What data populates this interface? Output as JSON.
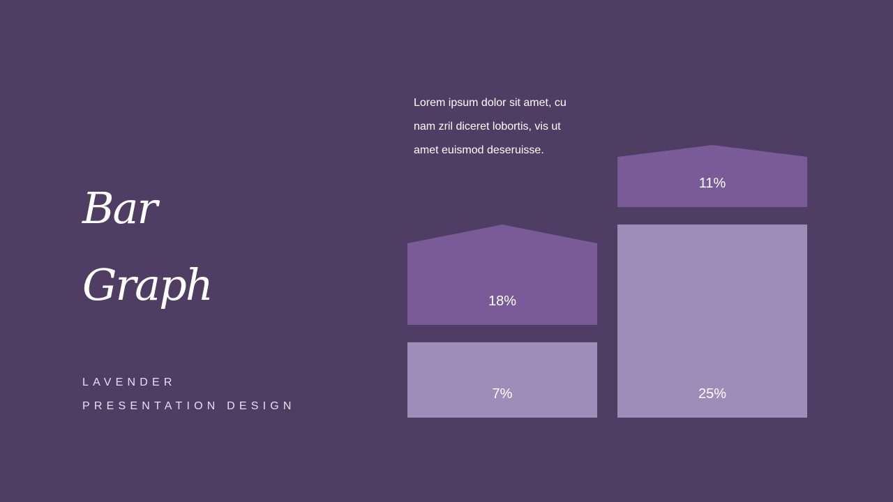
{
  "slide": {
    "title_line1": "Bar",
    "title_line2": "Graph",
    "subtitle_line1": "LAVENDER",
    "subtitle_line2": "PRESENTATION DESIGN",
    "description": "Lorem ipsum dolor sit amet, cu nam zril diceret lobortis, vis ut amet euismod deseruisse."
  },
  "colors": {
    "background": "#4f3d63",
    "bar_dark": "#795c97",
    "bar_light": "#a08cb8"
  },
  "chart_data": {
    "type": "bar",
    "stacked": true,
    "categories": [
      "",
      ""
    ],
    "series": [
      {
        "values": [
          7,
          25
        ],
        "labels": [
          "7%",
          "25%"
        ],
        "color": "#a08cb8"
      },
      {
        "values": [
          18,
          11
        ],
        "labels": [
          "18%",
          "11%"
        ],
        "color": "#795c97"
      }
    ],
    "axes_shown": false,
    "grid": false
  }
}
